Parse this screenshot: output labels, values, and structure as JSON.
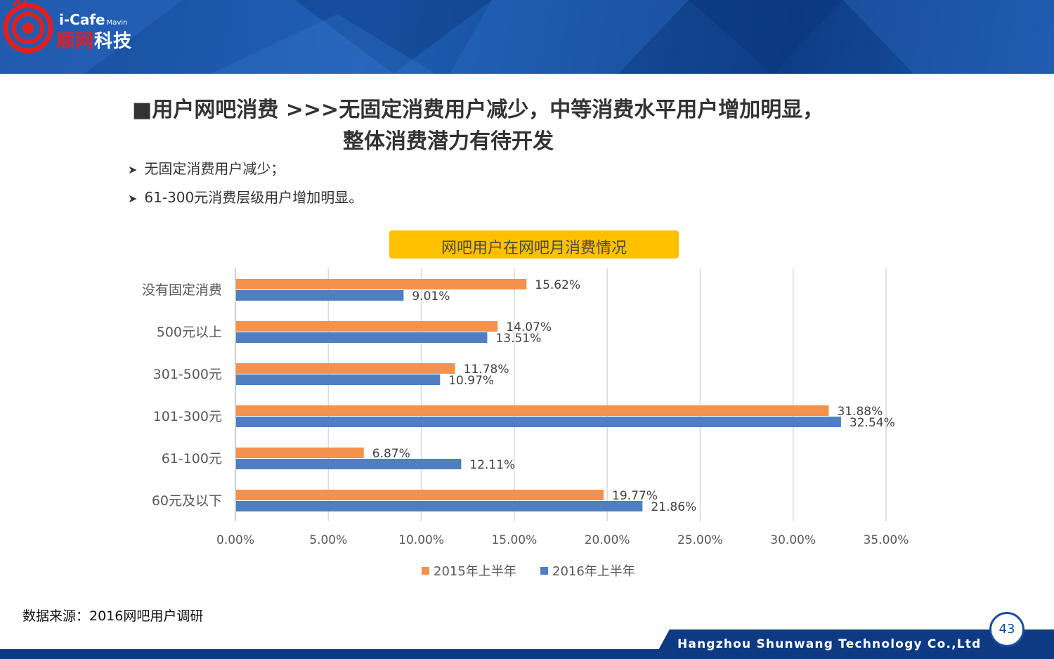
{
  "brand": {
    "logo_en": "i-Cafe",
    "logo_sub": "Mavin",
    "logo_cn_a": "顺网",
    "logo_cn_b": "科技"
  },
  "heading": {
    "line1": "■用户网吧消费   >>>无固定消费用户减少，中等消费水平用户增加明显，",
    "line2": "整体消费潜力有待开发"
  },
  "bullets": [
    "无固定消费用户减少；",
    "61-300元消费层级用户增加明显。"
  ],
  "chart_data": {
    "type": "bar",
    "orientation": "horizontal",
    "title": "网吧用户在网吧月消费情况",
    "categories": [
      "没有固定消费",
      "500元以上",
      "301-500元",
      "101-300元",
      "61-100元",
      "60元及以下"
    ],
    "series": [
      {
        "name": "2015年上半年",
        "values": [
          15.62,
          14.07,
          11.78,
          31.88,
          6.87,
          19.77
        ],
        "labels": [
          "15.62%",
          "14.07%",
          "11.78%",
          "31.88%",
          "6.87%",
          "19.77%"
        ]
      },
      {
        "name": "2016年上半年",
        "values": [
          9.01,
          13.51,
          10.97,
          32.54,
          12.11,
          21.86
        ],
        "labels": [
          "9.01%",
          "13.51%",
          "10.97%",
          "32.54%",
          "12.11%",
          "21.86%"
        ]
      }
    ],
    "xlim": [
      0,
      35
    ],
    "xticks": [
      "0.00%",
      "5.00%",
      "10.00%",
      "15.00%",
      "20.00%",
      "25.00%",
      "30.00%",
      "35.00%"
    ],
    "grid": true,
    "legend": "bottom",
    "colors": [
      "#f4914d",
      "#4f7fc0"
    ]
  },
  "source": "数据来源：2016网吧用户调研",
  "footer": {
    "company": "Hangzhou Shunwang Technology Co.,Ltd",
    "page": "43"
  }
}
